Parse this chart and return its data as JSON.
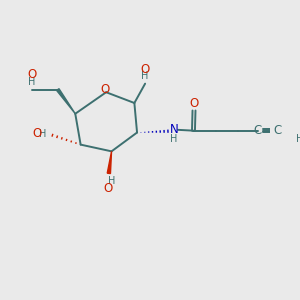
{
  "bg_color": "#eaeaea",
  "bond_color": "#3d7070",
  "red_color": "#cc2200",
  "blue_color": "#0000bb",
  "figsize": [
    3.0,
    3.0
  ],
  "dpi": 100,
  "xlim": [
    0,
    10
  ],
  "ylim": [
    0,
    10
  ],
  "font_size": 8.5,
  "font_size_small": 7.0,
  "lw": 1.4
}
